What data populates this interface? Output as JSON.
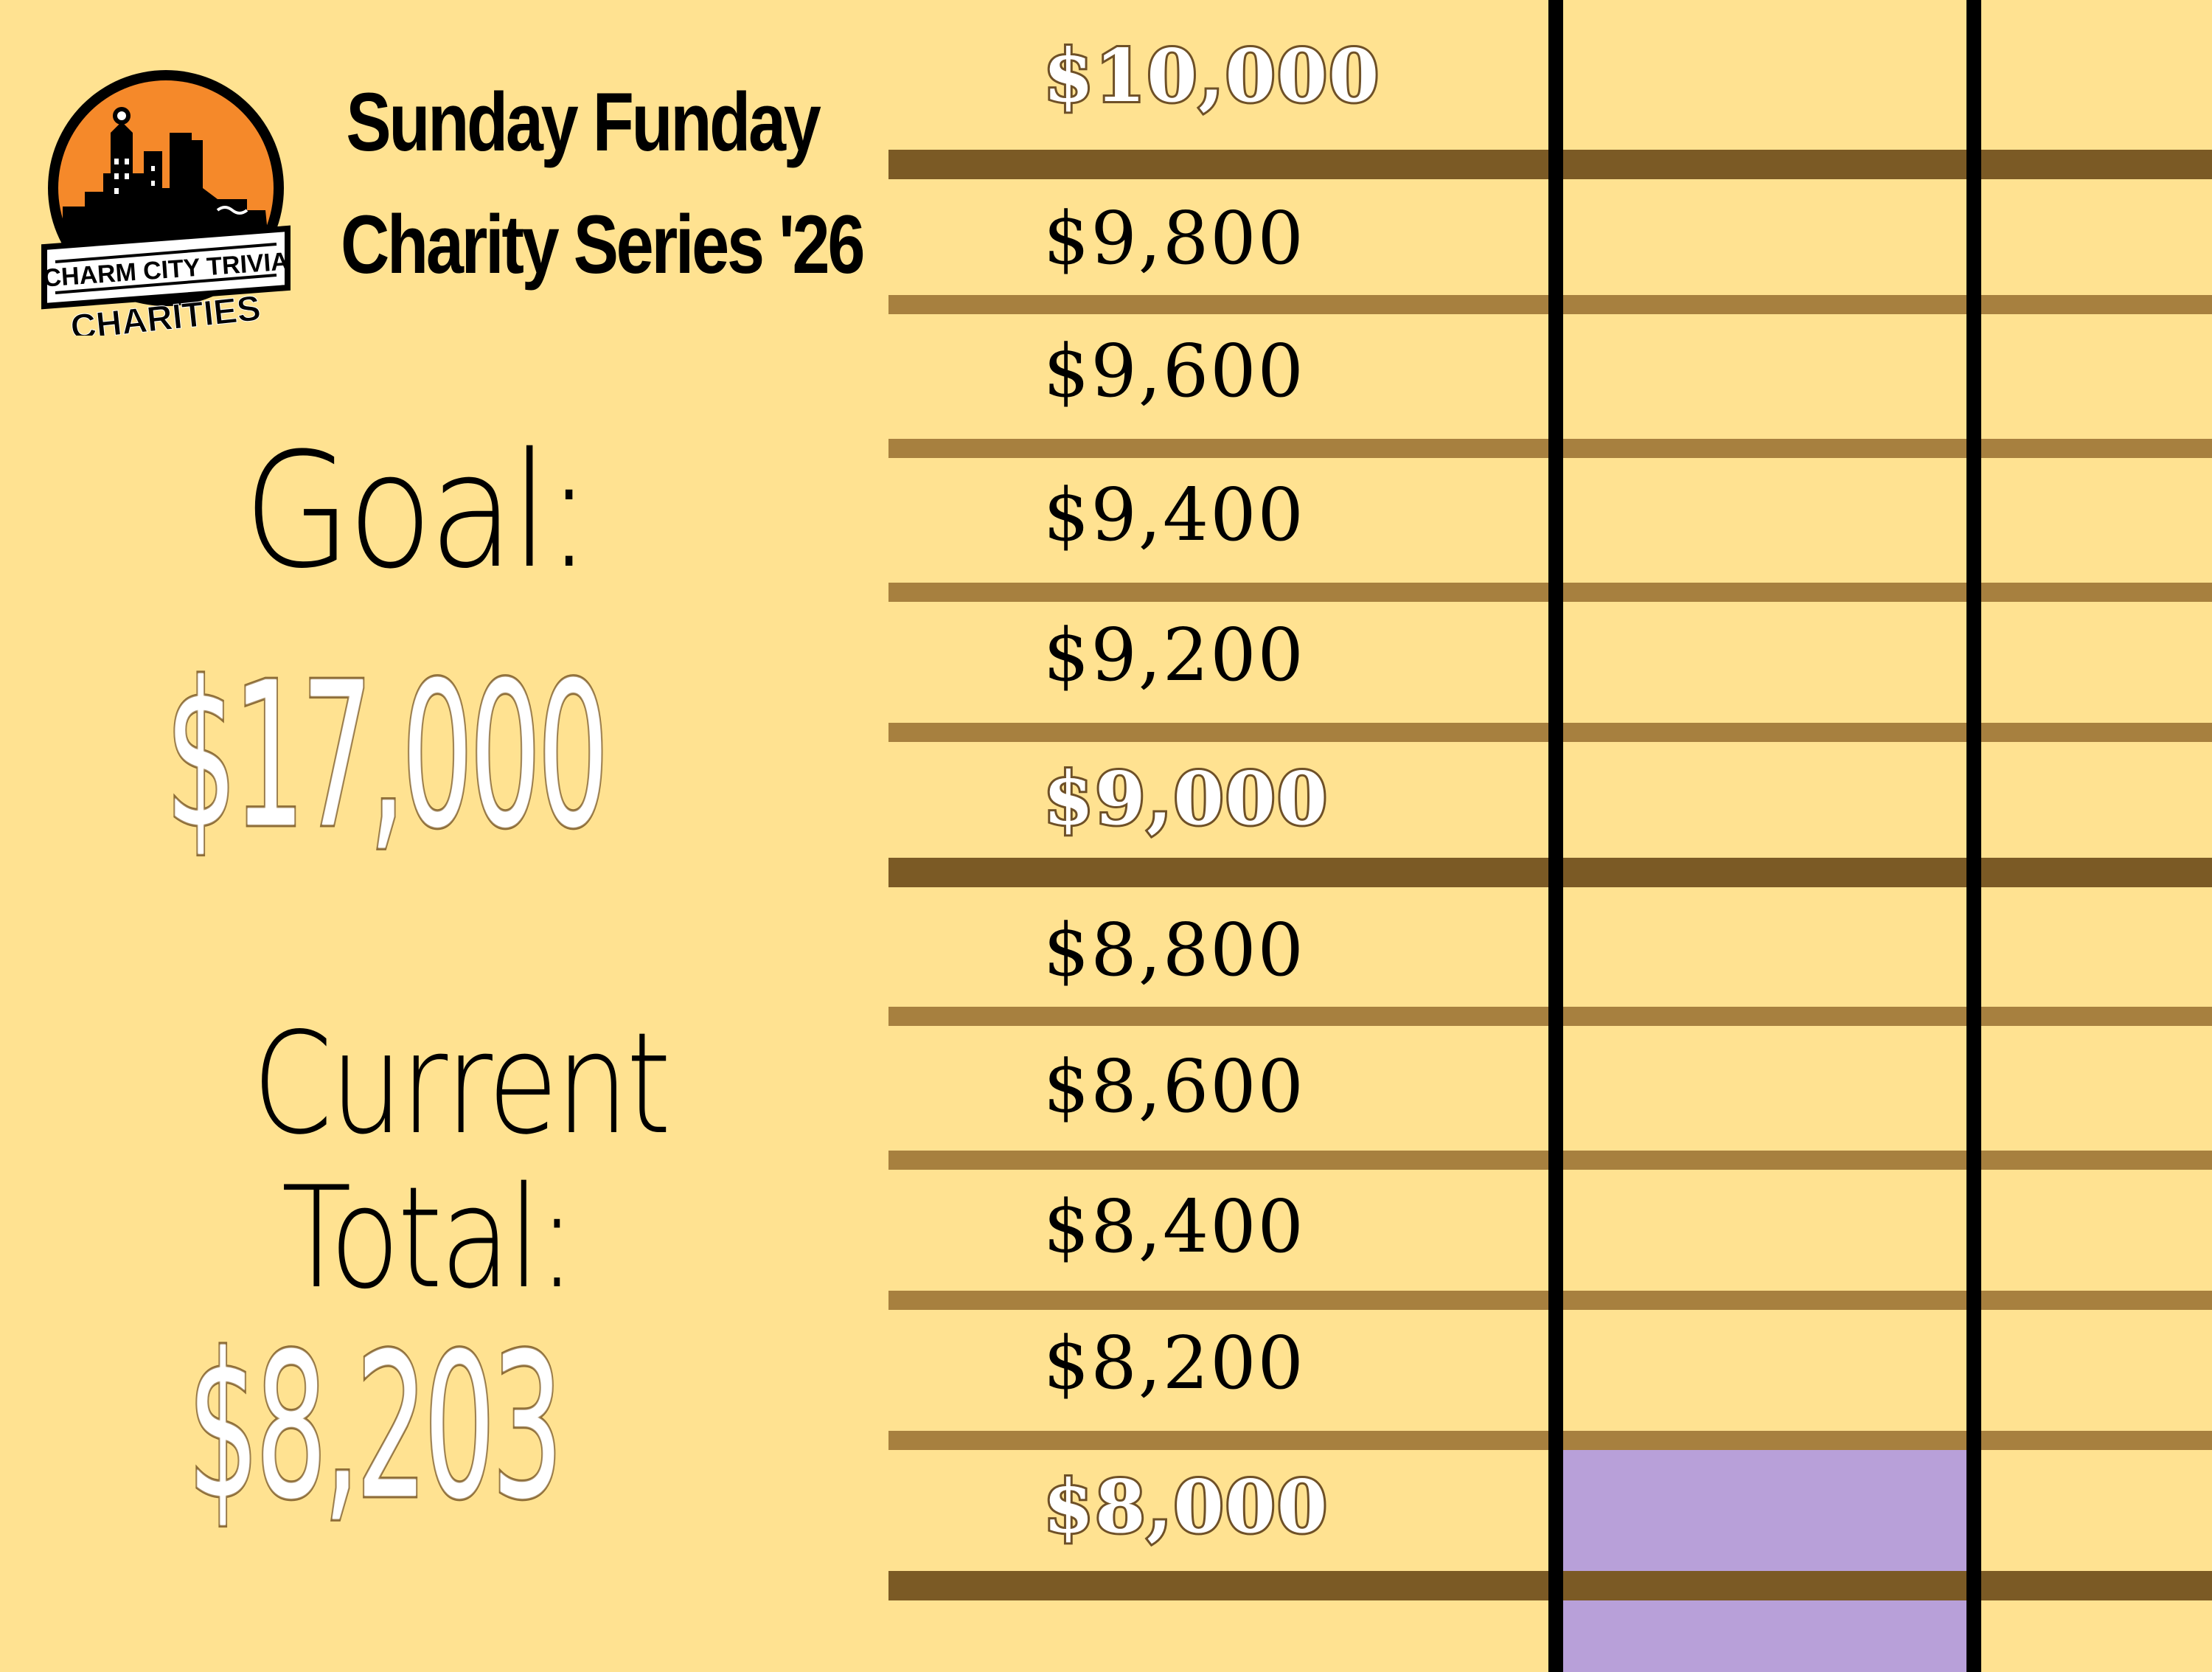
{
  "logo": {
    "banner_text": "CHARM CITY TRIVIA",
    "bottom_text": "CHARITIES"
  },
  "title": {
    "line1": "Sunday Funday",
    "line2": "Charity Series '26"
  },
  "goal": {
    "label": "Goal:",
    "amount": "$17,000"
  },
  "current": {
    "label_line1": "Current",
    "label_line2": "Total:",
    "amount": "$8,203"
  },
  "thermometer": {
    "ticks": [
      {
        "label": "$10,000",
        "highlight": true
      },
      {
        "label": "$9,800",
        "highlight": false
      },
      {
        "label": "$9,600",
        "highlight": false
      },
      {
        "label": "$9,400",
        "highlight": false
      },
      {
        "label": "$9,200",
        "highlight": false
      },
      {
        "label": "$9,000",
        "highlight": true
      },
      {
        "label": "$8,800",
        "highlight": false
      },
      {
        "label": "$8,600",
        "highlight": false
      },
      {
        "label": "$8,400",
        "highlight": false
      },
      {
        "label": "$8,200",
        "highlight": false
      },
      {
        "label": "$8,000",
        "highlight": true
      }
    ],
    "fill_color": "#B8A0D9"
  },
  "colors": {
    "background": "#FFE291",
    "bar_major": "#7B5A25",
    "bar_minor": "#A7803F",
    "logo_orange": "#F5892A"
  }
}
